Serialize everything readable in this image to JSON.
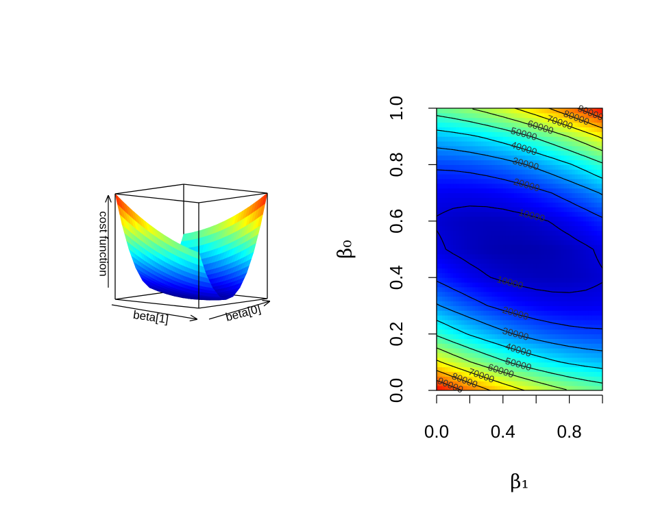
{
  "chart_data": [
    {
      "type": "surface",
      "xlabel": "beta[1]",
      "ylabel": "beta[0]",
      "zlabel": "cost function",
      "x": [
        0,
        0.1,
        0.2,
        0.3,
        0.4,
        0.5,
        0.6,
        0.7,
        0.8,
        0.9,
        1
      ],
      "y": [
        0,
        0.1,
        0.2,
        0.3,
        0.4,
        0.5,
        0.6,
        0.7,
        0.8,
        0.9,
        1
      ],
      "z": [
        [
          100000,
          93250,
          87000,
          81250,
          76000,
          71250,
          67000,
          63250,
          60000,
          57250,
          55000
        ],
        [
          71650,
          65800,
          60450,
          55600,
          51250,
          47400,
          44050,
          41200,
          38850,
          37000,
          35650
        ],
        [
          48600,
          43650,
          39200,
          35250,
          31800,
          28850,
          26400,
          24450,
          23000,
          22050,
          21600
        ],
        [
          30850,
          26800,
          23250,
          20200,
          17650,
          15600,
          14050,
          13000,
          12450,
          12400,
          12850
        ],
        [
          18400,
          15250,
          12600,
          10450,
          8800,
          7650,
          7000,
          6850,
          7200,
          8050,
          9400
        ],
        [
          11250,
          9000,
          7250,
          6000,
          5250,
          5000,
          5250,
          6000,
          7250,
          9000,
          11250
        ],
        [
          9400,
          8050,
          7200,
          6850,
          7000,
          7650,
          8800,
          10450,
          12600,
          15250,
          18400
        ],
        [
          12850,
          12400,
          12450,
          13000,
          14050,
          15600,
          17650,
          20200,
          23250,
          26800,
          30850
        ],
        [
          21600,
          22050,
          23000,
          24450,
          26400,
          28850,
          31800,
          35250,
          39200,
          43650,
          48600
        ],
        [
          35650,
          37000,
          38850,
          41200,
          44050,
          47400,
          51250,
          55600,
          60450,
          65800,
          71650
        ],
        [
          55000,
          57250,
          60000,
          63250,
          67000,
          71250,
          76000,
          81250,
          87000,
          93250,
          100000
        ]
      ],
      "colors": [
        "#00007f",
        "#0000ff",
        "#007fff",
        "#00ffff",
        "#7fff7f",
        "#ffff00",
        "#ff7f00",
        "#ff0000"
      ]
    },
    {
      "type": "contour",
      "xlabel": "β₁",
      "ylabel": "β₀",
      "x": [
        0,
        0.1,
        0.2,
        0.3,
        0.4,
        0.5,
        0.6,
        0.7,
        0.8,
        0.9,
        1
      ],
      "y": [
        0,
        0.1,
        0.2,
        0.3,
        0.4,
        0.5,
        0.6,
        0.7,
        0.8,
        0.9,
        1
      ],
      "z": [
        [
          100000,
          93250,
          87000,
          81250,
          76000,
          71250,
          67000,
          63250,
          60000,
          57250,
          55000
        ],
        [
          71650,
          65800,
          60450,
          55600,
          51250,
          47400,
          44050,
          41200,
          38850,
          37000,
          35650
        ],
        [
          48600,
          43650,
          39200,
          35250,
          31800,
          28850,
          26400,
          24450,
          23000,
          22050,
          21600
        ],
        [
          30850,
          26800,
          23250,
          20200,
          17650,
          15600,
          14050,
          13000,
          12450,
          12400,
          12850
        ],
        [
          18400,
          15250,
          12600,
          10450,
          8800,
          7650,
          7000,
          6850,
          7200,
          8050,
          9400
        ],
        [
          11250,
          9000,
          7250,
          6000,
          5250,
          5000,
          5250,
          6000,
          7250,
          9000,
          11250
        ],
        [
          9400,
          8050,
          7200,
          6850,
          7000,
          7650,
          8800,
          10450,
          12600,
          15250,
          18400
        ],
        [
          12850,
          12400,
          12450,
          13000,
          14050,
          15600,
          17650,
          20200,
          23250,
          26800,
          30850
        ],
        [
          21600,
          22050,
          23000,
          24450,
          26400,
          28850,
          31800,
          35250,
          39200,
          43650,
          48600
        ],
        [
          35650,
          37000,
          38850,
          41200,
          44050,
          47400,
          51250,
          55600,
          60450,
          65800,
          71650
        ],
        [
          55000,
          57250,
          60000,
          63250,
          67000,
          71250,
          76000,
          81250,
          87000,
          93250,
          100000
        ]
      ],
      "levels": [
        10000,
        20000,
        30000,
        40000,
        50000,
        60000,
        70000,
        80000,
        90000
      ],
      "zlim": [
        0,
        100000
      ],
      "colors": [
        "#00007f",
        "#0000ff",
        "#007fff",
        "#00ffff",
        "#7fff7f",
        "#ffff00",
        "#ff7f00",
        "#ff0000"
      ],
      "xlim": [
        0,
        1
      ],
      "ylim": [
        0,
        1
      ],
      "xticks": [
        {
          "value": 0,
          "label": "0.0"
        },
        {
          "value": 0.2,
          "label": null
        },
        {
          "value": 0.4,
          "label": "0.4"
        },
        {
          "value": 0.6,
          "label": null
        },
        {
          "value": 0.8,
          "label": "0.8"
        },
        {
          "value": 1,
          "label": null
        }
      ],
      "yticks": [
        {
          "value": 0,
          "label": "0.0"
        },
        {
          "value": 0.2,
          "label": "0.2"
        },
        {
          "value": 0.4,
          "label": "0.4"
        },
        {
          "value": 0.6,
          "label": "0.6"
        },
        {
          "value": 0.8,
          "label": "0.8"
        },
        {
          "value": 1,
          "label": "1.0"
        }
      ]
    }
  ]
}
